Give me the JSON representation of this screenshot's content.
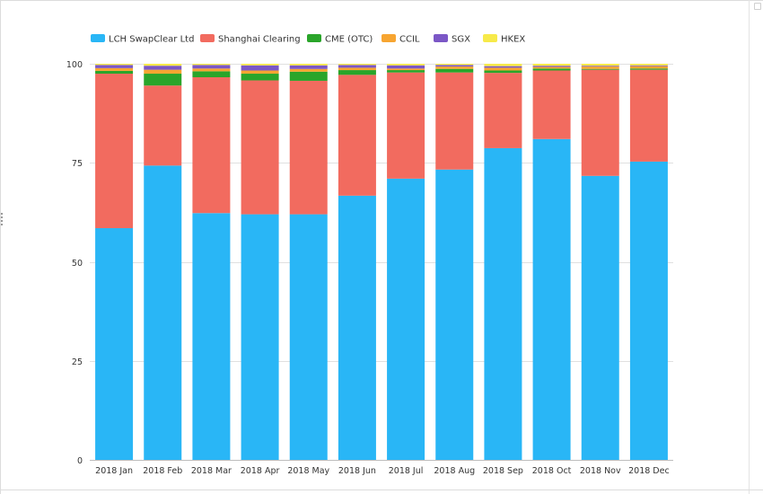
{
  "chart_data": {
    "type": "bar",
    "stacked": true,
    "categories": [
      "2018 Jan",
      "2018 Feb",
      "2018 Mar",
      "2018 Apr",
      "2018 May",
      "2018 Jun",
      "2018 Jul",
      "2018 Aug",
      "2018 Sep",
      "2018 Oct",
      "2018 Nov",
      "2018 Dec"
    ],
    "series": [
      {
        "name": "LCH SwapClear Ltd",
        "color": "#29b6f6",
        "values": [
          58.5,
          74.3,
          62.3,
          62.0,
          62.0,
          66.7,
          71.0,
          73.3,
          78.7,
          81.0,
          71.7,
          75.3
        ]
      },
      {
        "name": "Shanghai Clearing",
        "color": "#f26b5f",
        "values": [
          39.0,
          20.2,
          34.3,
          33.8,
          33.7,
          30.5,
          26.8,
          24.5,
          19.0,
          17.3,
          26.8,
          23.2
        ]
      },
      {
        "name": "CME (OTC)",
        "color": "#2aa52a",
        "values": [
          0.7,
          3.0,
          1.5,
          1.7,
          2.3,
          1.2,
          0.6,
          0.9,
          0.6,
          0.5,
          0.2,
          0.3
        ]
      },
      {
        "name": "CCIL",
        "color": "#f7a531",
        "values": [
          0.7,
          1.0,
          0.7,
          0.8,
          0.7,
          0.6,
          0.4,
          0.6,
          0.7,
          0.4,
          0.6,
          0.6
        ]
      },
      {
        "name": "SGX",
        "color": "#7b57c6",
        "values": [
          0.8,
          1.0,
          0.9,
          1.3,
          0.9,
          0.7,
          0.8,
          0.4,
          0.4,
          0.3,
          0.2,
          0.2
        ]
      },
      {
        "name": "HKEX",
        "color": "#f7ea4a",
        "values": [
          0.3,
          0.5,
          0.3,
          0.4,
          0.4,
          0.3,
          0.4,
          0.3,
          0.6,
          0.5,
          0.5,
          0.4
        ]
      }
    ],
    "title": "",
    "xlabel": "",
    "ylabel": "",
    "ylim": [
      0,
      100
    ],
    "yticks": [
      0,
      25,
      50,
      75,
      100
    ],
    "grid": true,
    "legend_position": "top-left"
  }
}
